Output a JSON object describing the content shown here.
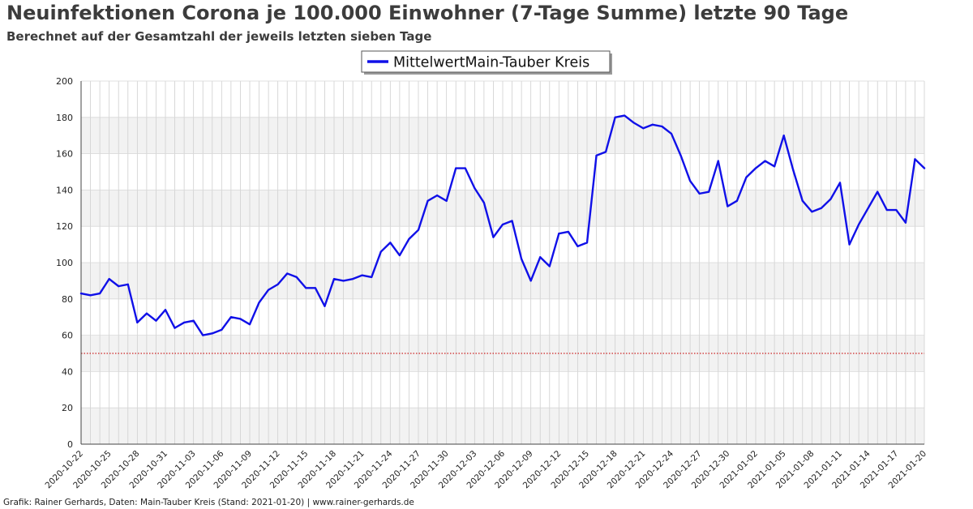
{
  "header": {
    "title": "Neuinfektionen Corona je 100.000 Einwohner (7-Tage Summe) letzte 90 Tage",
    "subtitle": "Berechnet auf der Gesamtzahl der jeweils letzten sieben Tage"
  },
  "footer": {
    "credit": "Grafik: Rainer Gerhards, Daten: Main-Tauber Kreis (Stand: 2021-01-20) | www.rainer-gerhards.de"
  },
  "colors": {
    "line": "#1010e8",
    "threshold": "#cc2222",
    "band": "#f2f2f2",
    "grid": "#cfcfcf"
  },
  "chart_data": {
    "type": "line",
    "legend": "top-center",
    "grid": true,
    "ylim": [
      0,
      200
    ],
    "yticks": [
      0,
      20,
      40,
      60,
      80,
      100,
      120,
      140,
      160,
      180,
      200
    ],
    "xticks": [
      "2020-10-22",
      "2020-10-25",
      "2020-10-28",
      "2020-10-31",
      "2020-11-03",
      "2020-11-06",
      "2020-11-09",
      "2020-11-12",
      "2020-11-15",
      "2020-11-18",
      "2020-11-21",
      "2020-11-24",
      "2020-11-27",
      "2020-11-30",
      "2020-12-03",
      "2020-12-06",
      "2020-12-09",
      "2020-12-12",
      "2020-12-15",
      "2020-12-18",
      "2020-12-21",
      "2020-12-24",
      "2020-12-27",
      "2020-12-30",
      "2021-01-02",
      "2021-01-05",
      "2021-01-08",
      "2021-01-11",
      "2021-01-14",
      "2021-01-17",
      "2021-01-20"
    ],
    "x_start": "2020-10-22",
    "x_end": "2021-01-20",
    "threshold": 50,
    "series": [
      {
        "name": "MittelwertMain-Tauber Kreis",
        "values": [
          83,
          82,
          83,
          91,
          87,
          88,
          67,
          72,
          68,
          74,
          64,
          67,
          68,
          60,
          61,
          63,
          70,
          69,
          66,
          78,
          85,
          88,
          94,
          92,
          86,
          86,
          76,
          91,
          90,
          91,
          93,
          92,
          106,
          111,
          104,
          113,
          118,
          134,
          137,
          134,
          152,
          152,
          141,
          133,
          114,
          121,
          123,
          102,
          90,
          103,
          98,
          116,
          117,
          109,
          111,
          159,
          161,
          180,
          181,
          177,
          174,
          176,
          175,
          171,
          159,
          145,
          138,
          139,
          156,
          131,
          134,
          147,
          152,
          156,
          153,
          170,
          151,
          134,
          128,
          130,
          135,
          144,
          110,
          121,
          130,
          139,
          129,
          129,
          122,
          157,
          152
        ]
      }
    ]
  }
}
